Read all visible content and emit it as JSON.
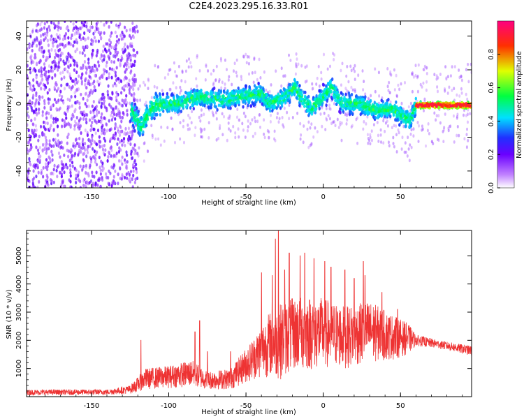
{
  "figure_title": "C2E4.2023.295.16.33.R01",
  "chart_data": [
    {
      "type": "heatmap",
      "xlabel": "Height of straight line (km)",
      "ylabel": "Frequency (Hz)",
      "xlim": [
        -192,
        96
      ],
      "ylim": [
        -50,
        49
      ],
      "xticks": [
        -150,
        -100,
        -50,
        0,
        50
      ],
      "yticks": [
        -40,
        -20,
        0,
        20,
        40
      ],
      "colorbar": {
        "label": "Normalized spectral amplitude",
        "range": [
          0.0,
          1.0
        ],
        "ticks": [
          "0.0",
          "0.2",
          "0.4",
          "0.6",
          "0.8"
        ]
      },
      "ridge": [
        {
          "x": -125,
          "y": -3
        },
        {
          "x": -118,
          "y": -14
        },
        {
          "x": -110,
          "y": -1
        },
        {
          "x": -95,
          "y": 0
        },
        {
          "x": -80,
          "y": 4
        },
        {
          "x": -65,
          "y": 2
        },
        {
          "x": -55,
          "y": 4
        },
        {
          "x": -40,
          "y": 6
        },
        {
          "x": -35,
          "y": 0
        },
        {
          "x": -25,
          "y": 4
        },
        {
          "x": -18,
          "y": 10
        },
        {
          "x": -15,
          "y": 4
        },
        {
          "x": -8,
          "y": -3
        },
        {
          "x": 0,
          "y": 4
        },
        {
          "x": 5,
          "y": 10
        },
        {
          "x": 12,
          "y": 0
        },
        {
          "x": 22,
          "y": 0
        },
        {
          "x": 35,
          "y": -4
        },
        {
          "x": 45,
          "y": -3
        },
        {
          "x": 52,
          "y": -8
        },
        {
          "x": 56,
          "y": -10
        },
        {
          "x": 60,
          "y": -1
        },
        {
          "x": 96,
          "y": -1
        }
      ]
    },
    {
      "type": "line",
      "xlabel": "Height of straight line (km)",
      "ylabel": "SNR (10 * v/v)",
      "xlim": [
        -192,
        96
      ],
      "ylim": [
        0,
        5900
      ],
      "xticks": [
        -150,
        -100,
        -50,
        0,
        50
      ],
      "yticks": [
        1000,
        2000,
        3000,
        4000,
        5000
      ],
      "series_color": "#ee3333",
      "envelope": [
        {
          "x": -192,
          "lo": 50,
          "hi": 250
        },
        {
          "x": -140,
          "lo": 60,
          "hi": 260
        },
        {
          "x": -125,
          "lo": 100,
          "hi": 400
        },
        {
          "x": -115,
          "lo": 250,
          "hi": 1000
        },
        {
          "x": -100,
          "lo": 300,
          "hi": 1100
        },
        {
          "x": -85,
          "lo": 350,
          "hi": 1300
        },
        {
          "x": -75,
          "lo": 250,
          "hi": 900
        },
        {
          "x": -60,
          "lo": 250,
          "hi": 1000
        },
        {
          "x": -45,
          "lo": 600,
          "hi": 2100
        },
        {
          "x": -35,
          "lo": 700,
          "hi": 3000
        },
        {
          "x": -28,
          "lo": 600,
          "hi": 3300
        },
        {
          "x": -20,
          "lo": 900,
          "hi": 3500
        },
        {
          "x": -10,
          "lo": 900,
          "hi": 3600
        },
        {
          "x": 0,
          "lo": 1000,
          "hi": 3500
        },
        {
          "x": 15,
          "lo": 1000,
          "hi": 3200
        },
        {
          "x": 30,
          "lo": 1200,
          "hi": 3400
        },
        {
          "x": 45,
          "lo": 1300,
          "hi": 2900
        },
        {
          "x": 55,
          "lo": 1500,
          "hi": 2600
        },
        {
          "x": 60,
          "lo": 1800,
          "hi": 2200
        },
        {
          "x": 75,
          "lo": 1700,
          "hi": 2000
        },
        {
          "x": 96,
          "lo": 1450,
          "hi": 1800
        }
      ],
      "spikes": [
        {
          "x": -118,
          "y": 2000
        },
        {
          "x": -83,
          "y": 2300
        },
        {
          "x": -80,
          "y": 2700
        },
        {
          "x": -75,
          "y": 1600
        },
        {
          "x": -60,
          "y": 1600
        },
        {
          "x": -40,
          "y": 4400
        },
        {
          "x": -33,
          "y": 4300
        },
        {
          "x": -31,
          "y": 5600
        },
        {
          "x": -29,
          "y": 5900
        },
        {
          "x": -25,
          "y": 4500
        },
        {
          "x": -22,
          "y": 5100
        },
        {
          "x": -15,
          "y": 5000
        },
        {
          "x": -12,
          "y": 5100
        },
        {
          "x": -6,
          "y": 4900
        },
        {
          "x": 1,
          "y": 4800
        },
        {
          "x": 5,
          "y": 4600
        },
        {
          "x": 14,
          "y": 4500
        },
        {
          "x": 20,
          "y": 4200
        },
        {
          "x": 26,
          "y": 4800
        },
        {
          "x": 27,
          "y": 4300
        },
        {
          "x": 38,
          "y": 3700
        },
        {
          "x": 48,
          "y": 3100
        }
      ]
    }
  ]
}
